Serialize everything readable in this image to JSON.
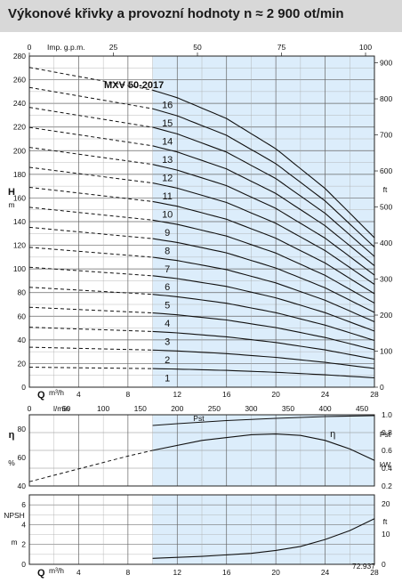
{
  "title": "Výkonové křivky a provozní hodnoty n ≈ 2 900 ot/min",
  "chart_data": [
    {
      "type": "line",
      "model": "MXV 50-2017",
      "xlabel": "Q",
      "xunit": "m³/h",
      "x_top_label": "Imp. g.p.m.",
      "y_left_label": "H",
      "y_left_unit": "m",
      "y_right_unit": "ft",
      "xlim": [
        0,
        28
      ],
      "ylim": [
        0,
        280
      ],
      "x_ticks": [
        "0",
        "4",
        "8",
        "12",
        "16",
        "20",
        "24",
        "28"
      ],
      "x_top_ticks": [
        "0",
        "25",
        "50",
        "75",
        "100"
      ],
      "y_left_ticks": [
        "0",
        "20",
        "40",
        "60",
        "80",
        "100",
        "120",
        "140",
        "160",
        "180",
        "200",
        "220",
        "240",
        "260",
        "280"
      ],
      "y_right_ticks": [
        "0",
        "100",
        "200",
        "300",
        "400",
        "500",
        "600",
        "700",
        "800",
        "900"
      ],
      "operating_range": [
        10,
        28
      ],
      "stages": [
        "1",
        "2",
        "3",
        "4",
        "5",
        "6",
        "7",
        "8",
        "9",
        "10",
        "11",
        "12",
        "13",
        "14",
        "15",
        "16"
      ],
      "shutoff_head_per_stage": 16.9,
      "head_curve_per_stage": [
        {
          "q": 0,
          "h": 16.9
        },
        {
          "q": 10,
          "h": 15.7
        },
        {
          "q": 12,
          "h": 15.3
        },
        {
          "q": 16,
          "h": 14.2
        },
        {
          "q": 20,
          "h": 12.6
        },
        {
          "q": 24,
          "h": 10.5
        },
        {
          "q": 28,
          "h": 7.9
        }
      ]
    },
    {
      "type": "line",
      "x_top_label": "l/min",
      "x_top_ticks": [
        "0",
        "50",
        "100",
        "150",
        "200",
        "250",
        "300",
        "350",
        "400",
        "450"
      ],
      "y_left_label": "η",
      "y_left_unit": "%",
      "y_left_ticks": [
        "40",
        "60",
        "80"
      ],
      "y_right_label": "Pst",
      "y_right_unit": "kW",
      "y_right_ticks": [
        "0.2",
        "0.4",
        "0.6",
        "0.8",
        "1.0"
      ],
      "ylim": [
        40,
        80
      ],
      "series": [
        {
          "name": "η",
          "points": [
            {
              "q": 0,
              "y": 43
            },
            {
              "q": 4,
              "y": 52
            },
            {
              "q": 8,
              "y": 61
            },
            {
              "q": 10,
              "y": 65
            },
            {
              "q": 14,
              "y": 72
            },
            {
              "q": 18,
              "y": 76
            },
            {
              "q": 20,
              "y": 76.5
            },
            {
              "q": 22,
              "y": 75.5
            },
            {
              "q": 24,
              "y": 72
            },
            {
              "q": 26,
              "y": 66
            },
            {
              "q": 28,
              "y": 58
            }
          ]
        },
        {
          "name": "Pst",
          "points": [
            {
              "q": 10,
              "y": 0.88
            },
            {
              "q": 12,
              "y": 0.9
            },
            {
              "q": 16,
              "y": 0.935
            },
            {
              "q": 20,
              "y": 0.96
            },
            {
              "q": 24,
              "y": 0.98
            },
            {
              "q": 28,
              "y": 0.99
            }
          ]
        }
      ]
    },
    {
      "type": "line",
      "y_left_label": "NPSH",
      "y_left_unit": "m",
      "y_left_ticks": [
        "0",
        "2",
        "4",
        "6"
      ],
      "y_right_unit": "ft",
      "y_right_ticks": [
        "0",
        "10",
        "20"
      ],
      "xlabel": "Q",
      "xunit": "m³/h",
      "x_ticks": [
        "0",
        "4",
        "8",
        "12",
        "16",
        "20",
        "24",
        "28"
      ],
      "ylim": [
        0,
        7
      ],
      "note": "72.937",
      "series": [
        {
          "name": "NPSH",
          "points": [
            {
              "q": 10,
              "y": 0.6
            },
            {
              "q": 14,
              "y": 0.8
            },
            {
              "q": 18,
              "y": 1.1
            },
            {
              "q": 20,
              "y": 1.4
            },
            {
              "q": 22,
              "y": 1.8
            },
            {
              "q": 24,
              "y": 2.5
            },
            {
              "q": 26,
              "y": 3.4
            },
            {
              "q": 28,
              "y": 4.6
            }
          ]
        }
      ]
    }
  ]
}
